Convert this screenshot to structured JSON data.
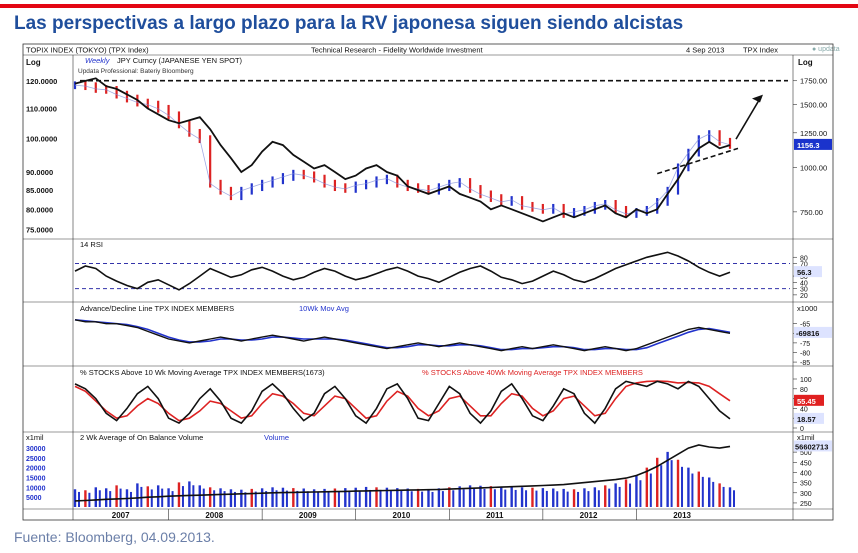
{
  "slide": {
    "title": "Las perspectivas a largo plazo para la RV japonesa siguen siendo alcistas",
    "source": "Fuente: Bloomberg, 04.09.2013.",
    "brand": "● updata"
  },
  "chart_header": {
    "left": "TOPIX INDEX (TOKYO) (TPX Index)",
    "center": "Technical Research - Fidelity Worldwide Investment",
    "right_date": "4 Sep 2013",
    "right_ticker": "TPX Index"
  },
  "colors": {
    "title_blue": "#1f4e9c",
    "accent_red": "#e30613",
    "series_blue": "#2233cc",
    "series_red": "#dd2222",
    "value_box_blue": "#1a33cc",
    "value_box_red": "#e02020"
  },
  "chart_data": [
    {
      "name": "price",
      "type": "line",
      "left_axis_label": "Log",
      "right_axis_label": "Log",
      "legend": [
        "Weekly",
        "JPY Curncy (JAPANESE YEN SPOT)"
      ],
      "subtitle": "Updata Professional: Bateriy Bloomberg",
      "left_ticks": [
        "120.0000",
        "110.0000",
        "100.0000",
        "90.0000",
        "85.0000",
        "80.0000",
        "75.0000"
      ],
      "left_tick_values": [
        120,
        110,
        100,
        90,
        85,
        80,
        75
      ],
      "right_ticks": [
        "1750.00",
        "1500.00",
        "1250.00",
        "1000.00",
        "750.00"
      ],
      "right_tick_values": [
        1750,
        1500,
        1250,
        1000,
        750
      ],
      "last_value": "1156.3",
      "years": [
        "2007",
        "2008",
        "2009",
        "2010",
        "2011",
        "2012",
        "2013"
      ],
      "tpx": [
        1700,
        1690,
        1660,
        1650,
        1600,
        1560,
        1520,
        1500,
        1460,
        1400,
        1320,
        1250,
        1200,
        900,
        860,
        830,
        860,
        880,
        900,
        920,
        940,
        960,
        950,
        930,
        900,
        880,
        870,
        890,
        900,
        920,
        930,
        900,
        880,
        870,
        860,
        880,
        900,
        910,
        870,
        840,
        820,
        800,
        810,
        780,
        770,
        760,
        770,
        740,
        750,
        760,
        780,
        790,
        760,
        740,
        750,
        760,
        800,
        860,
        1000,
        1100,
        1200,
        1240,
        1180,
        1156
      ],
      "usdjpy": [
        119,
        120,
        121,
        118,
        117,
        115,
        113,
        110,
        108,
        106,
        105,
        106,
        107,
        103,
        98,
        94,
        90,
        92,
        96,
        99,
        98,
        95,
        93,
        91,
        92,
        90,
        88,
        89,
        91,
        92,
        90,
        89,
        86,
        85,
        84,
        85,
        86,
        84,
        83,
        82,
        80,
        81,
        80,
        79,
        78,
        77,
        78,
        79,
        78,
        79,
        80,
        81,
        79,
        78,
        80,
        79,
        80,
        84,
        88,
        93,
        97,
        99,
        97,
        98
      ],
      "long_term_level": 1750
    },
    {
      "name": "rsi",
      "type": "line",
      "label": "14 RSI",
      "ticks": [
        "80",
        "70",
        "50",
        "40",
        "30",
        "20"
      ],
      "tick_values": [
        80,
        70,
        50,
        40,
        30,
        20
      ],
      "reference_levels": [
        70,
        30
      ],
      "last_value": "56.3",
      "values": [
        58,
        66,
        62,
        50,
        42,
        35,
        30,
        40,
        44,
        36,
        28,
        38,
        50,
        62,
        55,
        48,
        52,
        60,
        64,
        58,
        50,
        44,
        48,
        56,
        62,
        58,
        50,
        44,
        48,
        54,
        60,
        64,
        58,
        50,
        46,
        40,
        48,
        56,
        62,
        66,
        58,
        48,
        44,
        38,
        42,
        50,
        58,
        52,
        44,
        40,
        46,
        54,
        62,
        68,
        74,
        80,
        84,
        88,
        82,
        74,
        64,
        56,
        50,
        56
      ]
    },
    {
      "name": "advance_decline",
      "type": "line",
      "label": "Advance/Decline Line TPX INDEX MEMBERS",
      "series_names": [
        "10Wk Mov Avg"
      ],
      "unit": "x1000",
      "ticks": [
        "-65",
        "-70",
        "-75",
        "-80",
        "-85"
      ],
      "tick_values": [
        -65,
        -70,
        -75,
        -80,
        -85
      ],
      "last_value": "-69816",
      "line": [
        -63,
        -64,
        -64,
        -65,
        -65,
        -66,
        -67,
        -69,
        -71,
        -73,
        -74,
        -75,
        -74,
        -73,
        -72,
        -73,
        -74,
        -73,
        -72,
        -71,
        -72,
        -73,
        -74,
        -73,
        -72,
        -73,
        -74,
        -75,
        -76,
        -77,
        -78,
        -77,
        -76,
        -75,
        -76,
        -77,
        -76,
        -75,
        -76,
        -77,
        -78,
        -79,
        -78,
        -77,
        -78,
        -77,
        -76,
        -77,
        -78,
        -79,
        -78,
        -77,
        -78,
        -79,
        -78,
        -76,
        -74,
        -72,
        -70,
        -68,
        -67,
        -68,
        -69,
        -70
      ],
      "mov_avg": [
        -63,
        -63.5,
        -64,
        -64.5,
        -65,
        -65.5,
        -66.5,
        -68,
        -70,
        -72,
        -73.5,
        -74.5,
        -74.5,
        -74,
        -73,
        -73,
        -73.5,
        -73.5,
        -73,
        -72,
        -72,
        -72.5,
        -73,
        -73,
        -73,
        -73,
        -73.5,
        -74.5,
        -75.5,
        -76.5,
        -77.5,
        -77.5,
        -77,
        -76,
        -76,
        -76.5,
        -76.5,
        -76,
        -76,
        -76.5,
        -77.5,
        -78.5,
        -78.5,
        -78,
        -78,
        -77.5,
        -77,
        -77,
        -77.5,
        -78.5,
        -78.5,
        -78,
        -78,
        -78.5,
        -78.5,
        -77.5,
        -75.5,
        -73.5,
        -71.5,
        -69.5,
        -68,
        -67.5,
        -68.5,
        -69.5
      ]
    },
    {
      "name": "stocks_above_ma",
      "type": "line",
      "label_black": "% STOCKS Above 10 Wk Moving Average TPX INDEX MEMBERS(1673)",
      "label_red": "% STOCKS Above 40Wk Moving Average  TPX INDEX MEMBERS",
      "ticks": [
        "100",
        "80",
        "60",
        "40",
        "20",
        "0"
      ],
      "tick_values": [
        100,
        80,
        60,
        40,
        20,
        0
      ],
      "last_value_red": "55.45",
      "last_value_black": "18.57",
      "pct_10wk": [
        90,
        80,
        60,
        30,
        15,
        40,
        70,
        85,
        60,
        20,
        10,
        30,
        60,
        80,
        55,
        20,
        10,
        35,
        75,
        90,
        70,
        40,
        15,
        30,
        70,
        85,
        60,
        25,
        10,
        40,
        80,
        90,
        60,
        20,
        15,
        50,
        85,
        70,
        30,
        10,
        35,
        75,
        90,
        60,
        25,
        15,
        45,
        80,
        70,
        30,
        10,
        40,
        80,
        95,
        90,
        85,
        95,
        90,
        80,
        95,
        85,
        60,
        35,
        18.57
      ],
      "pct_40wk": [
        85,
        75,
        55,
        35,
        20,
        25,
        45,
        60,
        50,
        30,
        15,
        20,
        35,
        55,
        50,
        35,
        20,
        25,
        50,
        70,
        65,
        50,
        30,
        25,
        45,
        65,
        60,
        40,
        20,
        25,
        55,
        75,
        65,
        40,
        25,
        35,
        60,
        65,
        45,
        25,
        25,
        50,
        70,
        65,
        40,
        25,
        35,
        60,
        65,
        45,
        25,
        30,
        60,
        85,
        92,
        95,
        96,
        95,
        92,
        93,
        92,
        85,
        70,
        55.45
      ]
    },
    {
      "name": "volume",
      "type": "bar",
      "label": "2 Wk  Average of On Balance Volume",
      "series_names": [
        "Volume"
      ],
      "left_unit": "x1mil",
      "right_unit": "x1mil",
      "left_ticks": [
        "30000",
        "25000",
        "20000",
        "15000",
        "10000",
        "5000"
      ],
      "left_tick_values": [
        30000,
        25000,
        20000,
        15000,
        10000,
        5000
      ],
      "right_ticks": [
        "500",
        "450",
        "400",
        "350",
        "300",
        "250"
      ],
      "right_tick_values": [
        500,
        450,
        400,
        350,
        300,
        250
      ],
      "last_value": "56602713",
      "obv": [
        260,
        262,
        265,
        268,
        270,
        272,
        275,
        278,
        280,
        283,
        285,
        287,
        288,
        290,
        292,
        293,
        295,
        296,
        298,
        300,
        301,
        302,
        303,
        304,
        305,
        306,
        307,
        308,
        309,
        310,
        311,
        312,
        313,
        314,
        315,
        316,
        318,
        320,
        322,
        324,
        326,
        328,
        330,
        332,
        334,
        336,
        338,
        340,
        345,
        350,
        355,
        360,
        365,
        372,
        385,
        405,
        430,
        460,
        490,
        520,
        535,
        525,
        520,
        528
      ],
      "volume": [
        9000,
        8500,
        10000,
        9500,
        11000,
        9000,
        12000,
        10500,
        11000,
        9500,
        12500,
        13000,
        11000,
        10000,
        9500,
        9000,
        8800,
        9200,
        9500,
        10000,
        9800,
        9600,
        9400,
        9000,
        9200,
        9400,
        9600,
        9800,
        10200,
        10000,
        9800,
        9600,
        9400,
        9200,
        9000,
        9500,
        10000,
        10500,
        11000,
        10800,
        10600,
        10400,
        10200,
        10000,
        9800,
        9600,
        9400,
        9200,
        9000,
        9500,
        10000,
        11000,
        12000,
        14000,
        16000,
        20000,
        25000,
        28000,
        24000,
        20000,
        18000,
        15000,
        12000,
        10000
      ],
      "volume_red_flags": [
        false,
        true,
        false,
        false,
        true,
        false,
        false,
        true,
        false,
        false,
        true,
        false,
        false,
        true,
        false,
        false,
        false,
        true,
        false,
        false,
        false,
        true,
        false,
        false,
        false,
        true,
        false,
        false,
        false,
        true,
        false,
        false,
        false,
        true,
        false,
        false,
        true,
        false,
        false,
        false,
        true,
        false,
        false,
        false,
        true,
        false,
        false,
        false,
        true,
        false,
        false,
        true,
        false,
        true,
        false,
        true,
        true,
        false,
        true,
        false,
        true,
        false,
        true,
        false
      ]
    }
  ]
}
